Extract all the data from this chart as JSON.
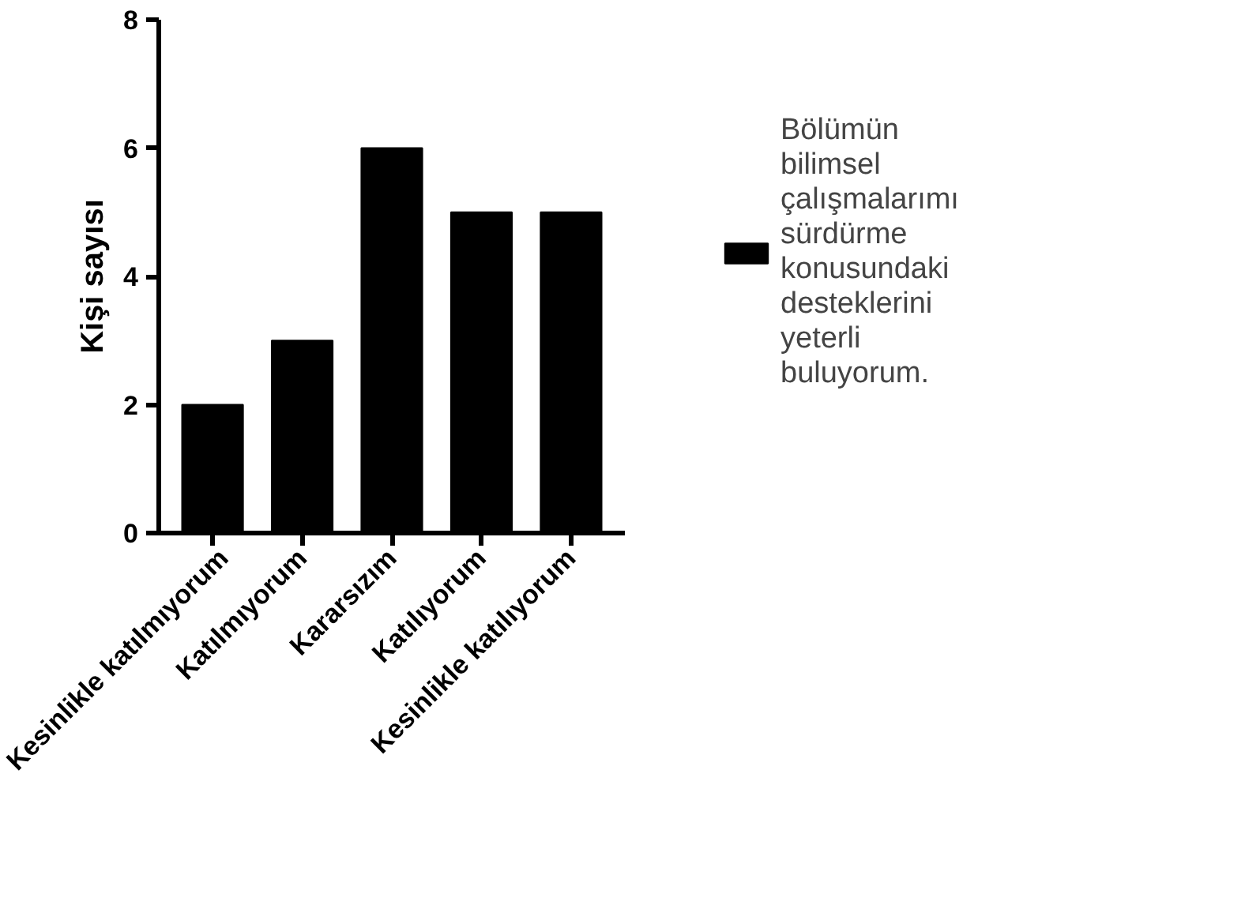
{
  "chart_data": {
    "type": "bar",
    "ylabel": "Kişi sayısı",
    "categories": [
      "Kesinlikle katılmıyorum",
      "Katılmıyorum",
      "Kararsızım",
      "Katılıyorum",
      "Kesinlikle katılıyorum"
    ],
    "series": [
      {
        "name": "Bölümün bilimsel çalışmalarımı sürdürme konusundaki desteklerini yeterli buluyorum.",
        "color": "#000000",
        "values": [
          2,
          3,
          6,
          5,
          5
        ]
      }
    ],
    "ylim": [
      0,
      8
    ],
    "yticks": [
      0,
      2,
      4,
      6,
      8
    ],
    "grid": false,
    "legend": "right"
  }
}
